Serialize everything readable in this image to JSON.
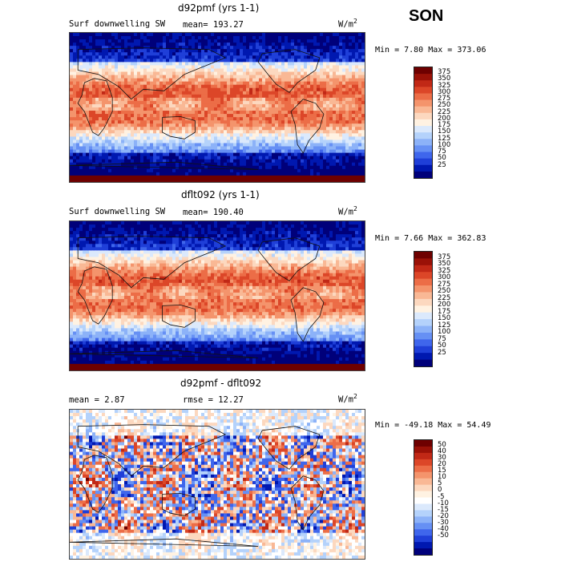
{
  "season": "SON",
  "units_base": "W/m",
  "units_exp": "2",
  "palettes": {
    "abs": [
      "#00007a",
      "#0018b0",
      "#1f3fd8",
      "#3f66ec",
      "#6690f4",
      "#8cb2f8",
      "#b4d2fb",
      "#dbe9fc",
      "#fff2e2",
      "#fcd8bf",
      "#f9b895",
      "#f4946c",
      "#ec6d47",
      "#dc4628",
      "#c12816",
      "#9a1107",
      "#6e0000"
    ],
    "diff": [
      "#00007a",
      "#0018b0",
      "#1f3fd8",
      "#3f66ec",
      "#6690f4",
      "#8cb2f8",
      "#b4d2fb",
      "#dbe9fc",
      "#ffffff",
      "#fff2e2",
      "#fcd8bf",
      "#f9b895",
      "#f4946c",
      "#ec6d47",
      "#dc4628",
      "#c12816",
      "#9a1107",
      "#6e0000"
    ]
  },
  "chart_data": [
    {
      "type": "heatmap",
      "title": "d92pmf (yrs 1-1)",
      "variable": "Surf downwelling SW",
      "mean_text": "mean= 193.27",
      "min_max_text": "Min =   7.80 Max = 373.06",
      "min": 7.8,
      "max": 373.06,
      "mean": 193.27,
      "colorbar_ticks": [
        "375",
        "350",
        "325",
        "300",
        "275",
        "250",
        "225",
        "200",
        "175",
        "150",
        "125",
        "100",
        "75",
        "50",
        "25"
      ],
      "palette": "abs"
    },
    {
      "type": "heatmap",
      "title": "dflt092 (yrs 1-1)",
      "variable": "Surf downwelling SW",
      "mean_text": "mean= 190.40",
      "min_max_text": "Min =   7.66 Max = 362.83",
      "min": 7.66,
      "max": 362.83,
      "mean": 190.4,
      "colorbar_ticks": [
        "375",
        "350",
        "325",
        "300",
        "275",
        "250",
        "225",
        "200",
        "175",
        "150",
        "125",
        "100",
        "75",
        "50",
        "25"
      ],
      "palette": "abs"
    },
    {
      "type": "heatmap",
      "title": "d92pmf - dflt092",
      "mean_text": "mean =   2.87",
      "rmse_text": "rmse =  12.27",
      "min_max_text": "Min = -49.18 Max =  54.49",
      "min": -49.18,
      "max": 54.49,
      "mean": 2.87,
      "rmse": 12.27,
      "colorbar_ticks": [
        "50",
        "40",
        "30",
        "20",
        "15",
        "10",
        "5",
        "0",
        "-5",
        "-10",
        "-15",
        "-20",
        "-30",
        "-40",
        "-50"
      ],
      "palette": "diff"
    }
  ]
}
